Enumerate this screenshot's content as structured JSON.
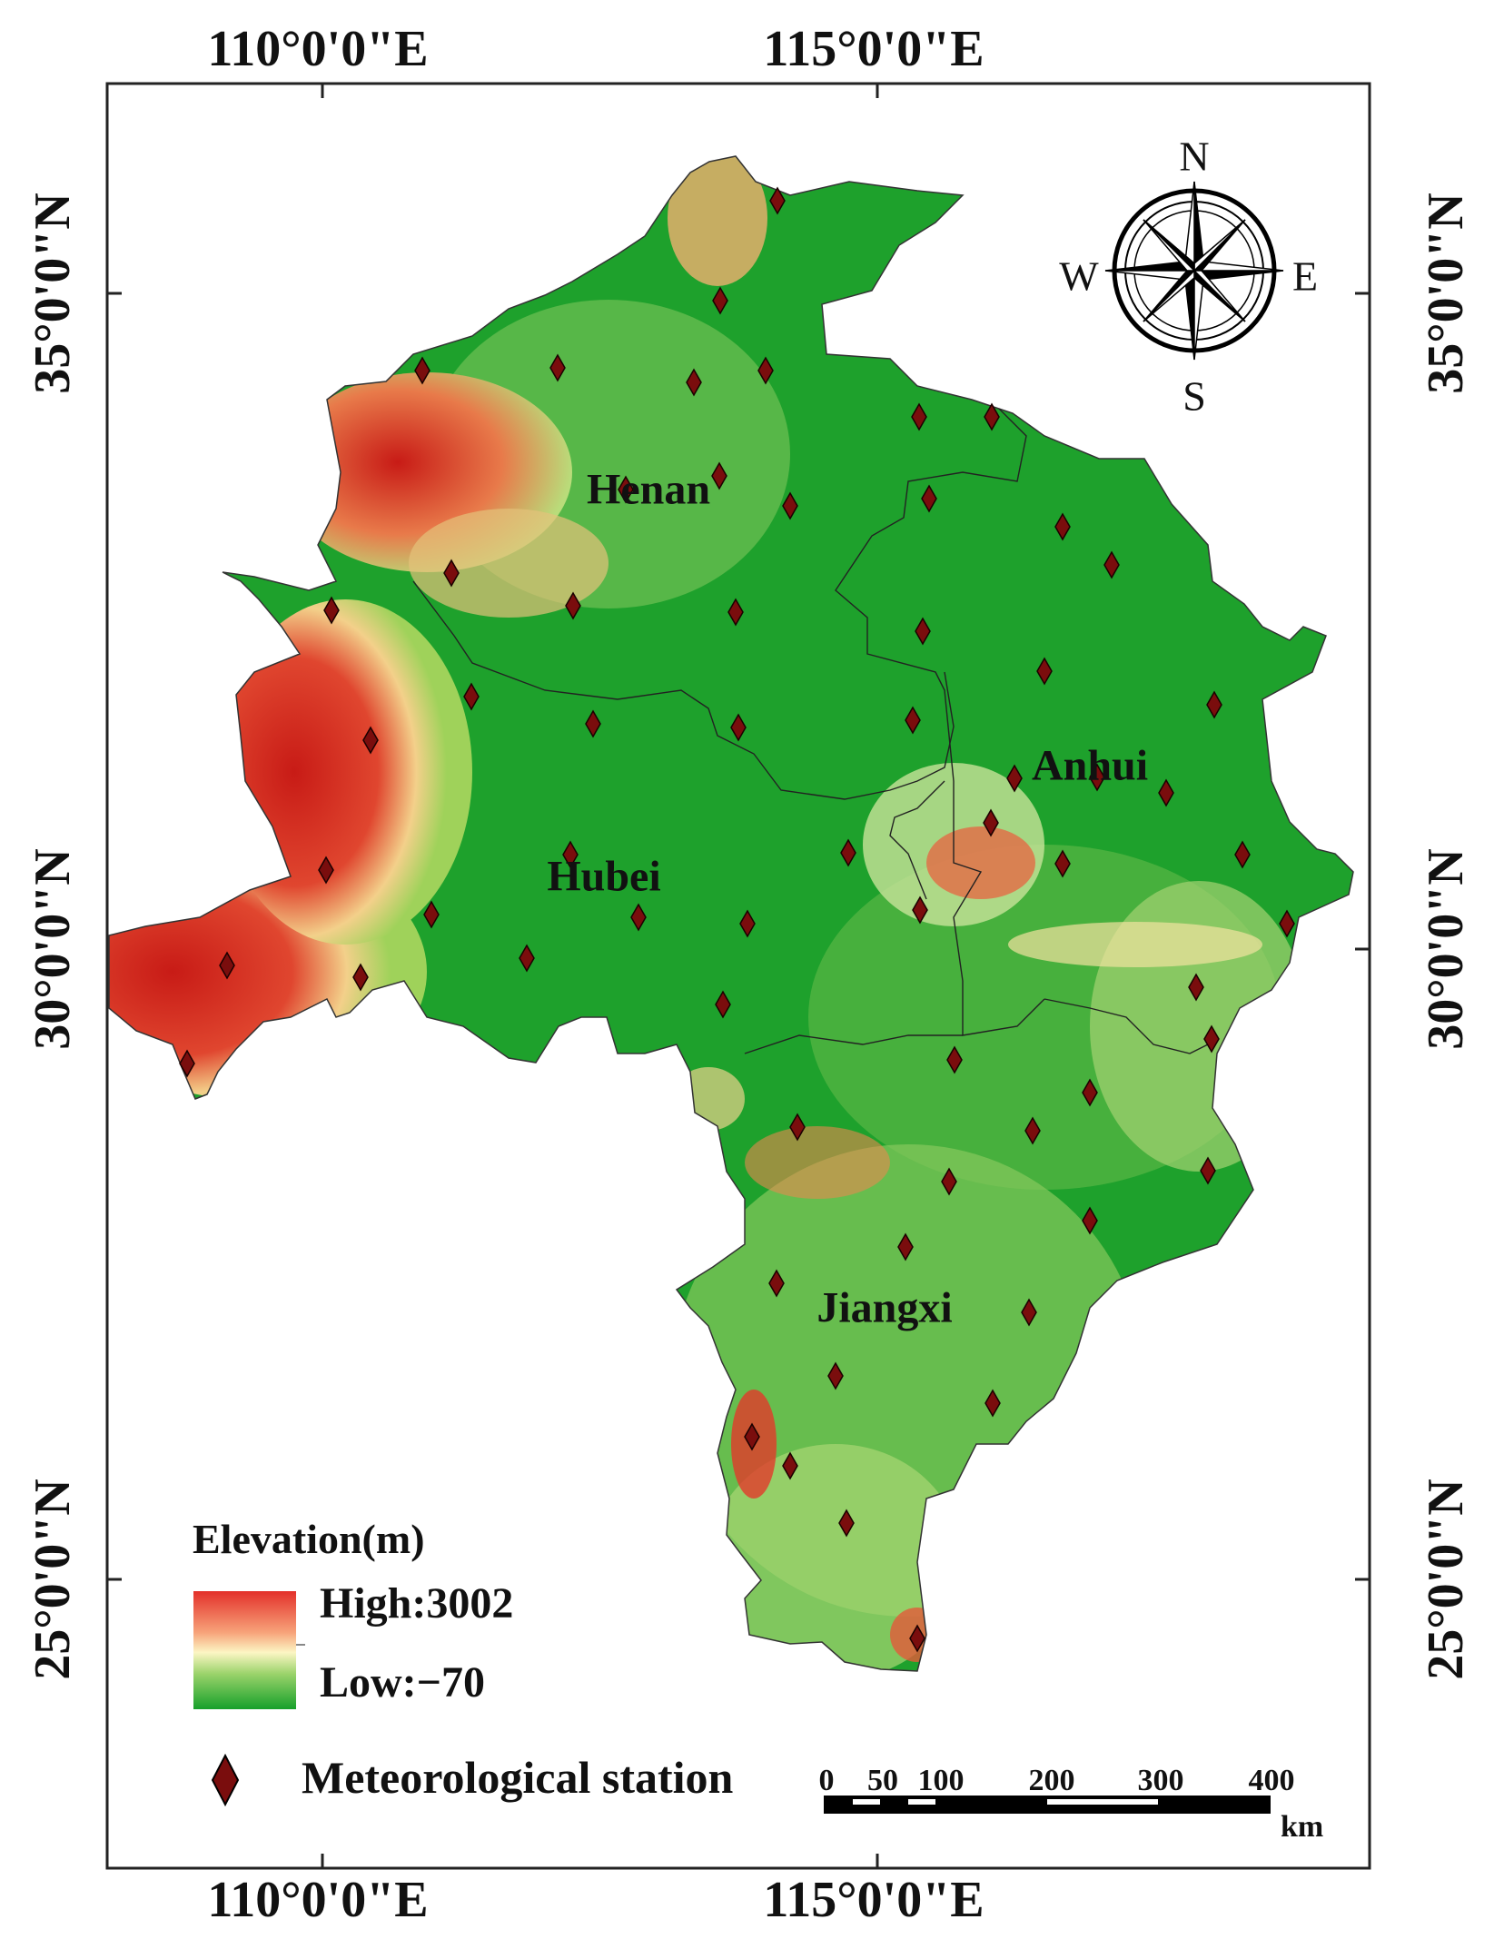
{
  "map": {
    "longitude_labels": [
      "110°0'0\"E",
      "115°0'0\"E"
    ],
    "latitude_labels": [
      "35°0'0\"N",
      "30°0'0\"N",
      "25°0'0\"N"
    ],
    "provinces": [
      "Henan",
      "Anhui",
      "Hubei",
      "Jiangxi"
    ],
    "compass": {
      "n": "N",
      "s": "S",
      "e": "E",
      "w": "W"
    },
    "colors": {
      "high": "#d9231f",
      "mid": "#f8f5b8",
      "low": "#1ea12c",
      "station": "#7a0d0d"
    }
  },
  "legend": {
    "title": "Elevation(m)",
    "high": "High:3002",
    "low": "Low:−70",
    "station": "Meteorological station"
  },
  "scale_bar": {
    "ticks": [
      "0",
      "50",
      "100",
      "200",
      "300",
      "400"
    ],
    "unit": "km"
  }
}
